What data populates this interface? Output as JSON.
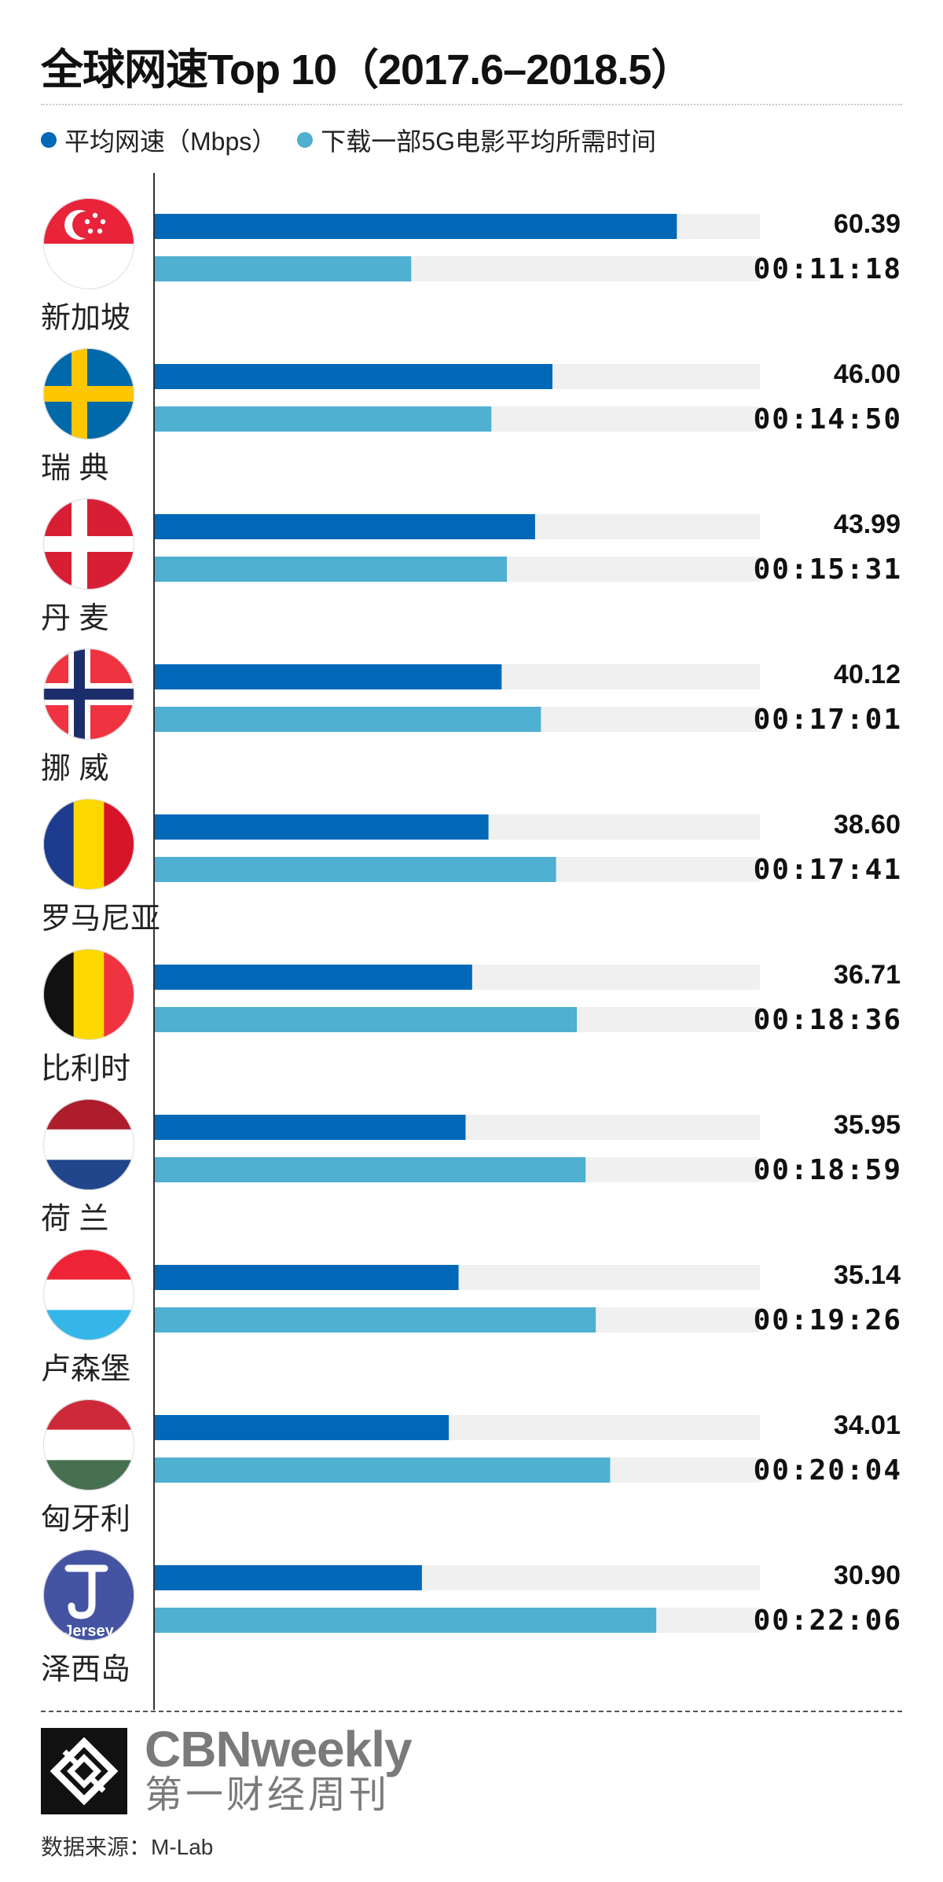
{
  "chart_data": {
    "type": "bar",
    "title": "全球网速Top 10（2017.6–2018.5）",
    "legend": [
      {
        "label": "平均网速（Mbps）",
        "color": "#0068b7"
      },
      {
        "label": "下载一部5G电影平均所需时间",
        "color": "#4fb0d1"
      }
    ],
    "track_color": "#f0f0f0",
    "speed_max": 70,
    "time_max_seconds": 1600,
    "categories": [
      "新加坡",
      "瑞 典",
      "丹 麦",
      "挪 威",
      "罗马尼亚",
      "比利时",
      "荷 兰",
      "卢森堡",
      "匈牙利",
      "泽西岛"
    ],
    "series": [
      {
        "name": "平均网速（Mbps）",
        "values": [
          60.39,
          46.0,
          43.99,
          40.12,
          38.6,
          36.71,
          35.95,
          35.14,
          34.01,
          30.9
        ],
        "labels": [
          "60.39",
          "46.00",
          "43.99",
          "40.12",
          "38.60",
          "36.71",
          "35.95",
          "35.14",
          "34.01",
          "30.90"
        ]
      },
      {
        "name": "下载一部5G电影平均所需时间",
        "values": [
          678,
          890,
          931,
          1021,
          1061,
          1116,
          1139,
          1166,
          1204,
          1326
        ],
        "labels": [
          "00:11:18",
          "00:14:50",
          "00:15:31",
          "00:17:01",
          "00:17:41",
          "00:18:36",
          "00:18:59",
          "00:19:26",
          "00:20:04",
          "00:22:06"
        ]
      }
    ],
    "flags": [
      {
        "country": "新加坡",
        "icon": "singapore-flag-icon",
        "stripes": "h",
        "colors": [
          "#e8233a",
          "#ffffff"
        ],
        "emblem": "crescent-stars"
      },
      {
        "country": "瑞 典",
        "icon": "sweden-flag-icon",
        "stripes": "nordic",
        "colors": [
          "#0069aa",
          "#fcc600"
        ]
      },
      {
        "country": "丹 麦",
        "icon": "denmark-flag-icon",
        "stripes": "nordic",
        "colors": [
          "#d81e34",
          "#ffffff"
        ]
      },
      {
        "country": "挪 威",
        "icon": "norway-flag-icon",
        "stripes": "nordic2",
        "colors": [
          "#ef3340",
          "#ffffff",
          "#1c2d6b"
        ]
      },
      {
        "country": "罗马尼亚",
        "icon": "romania-flag-icon",
        "stripes": "v",
        "colors": [
          "#1d3c8f",
          "#fcd800",
          "#d7152a"
        ]
      },
      {
        "country": "比利时",
        "icon": "belgium-flag-icon",
        "stripes": "v",
        "colors": [
          "#111111",
          "#fcd800",
          "#ef3340"
        ]
      },
      {
        "country": "荷 兰",
        "icon": "netherlands-flag-icon",
        "stripes": "h",
        "colors": [
          "#ad1d2c",
          "#ffffff",
          "#21468b"
        ]
      },
      {
        "country": "卢森堡",
        "icon": "luxembourg-flag-icon",
        "stripes": "h",
        "colors": [
          "#ee2436",
          "#ffffff",
          "#35b6e8"
        ]
      },
      {
        "country": "匈牙利",
        "icon": "hungary-flag-icon",
        "stripes": "h",
        "colors": [
          "#ce2939",
          "#ffffff",
          "#477050"
        ]
      },
      {
        "country": "泽西岛",
        "icon": "jersey-emblem-icon",
        "stripes": "emblem",
        "colors": [
          "#4453a2",
          "#ffffff"
        ],
        "emblem_text": "Jersey"
      }
    ]
  },
  "brand": {
    "name_en": "CBNweekly",
    "name_cn": "第一财经周刊"
  },
  "source": "数据来源：M-Lab"
}
